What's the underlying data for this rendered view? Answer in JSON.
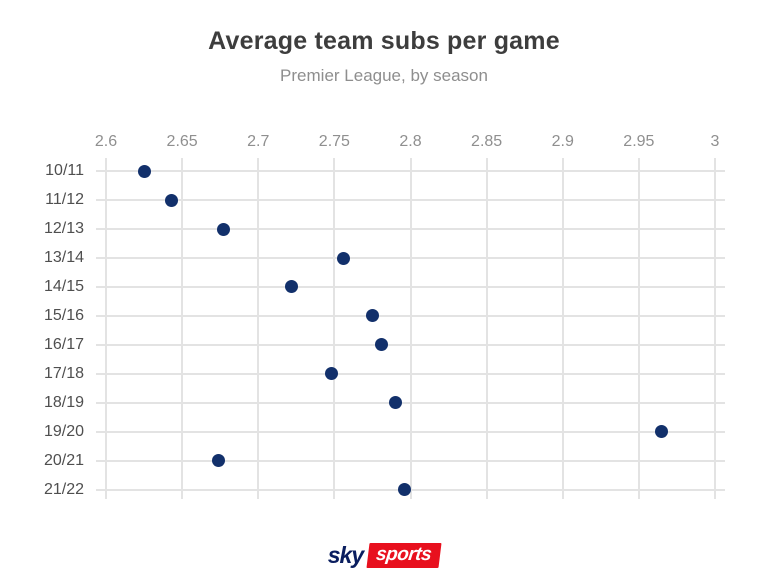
{
  "header": {
    "title": "Average team subs per game",
    "subtitle": "Premier League, by season"
  },
  "chart_data": {
    "type": "scatter",
    "variant": "horizontal-dot-plot",
    "title": "Average team subs per game",
    "subtitle": "Premier League, by season",
    "xlabel": "",
    "ylabel": "",
    "categories": [
      "10/11",
      "11/12",
      "12/13",
      "13/14",
      "14/15",
      "15/16",
      "16/17",
      "17/18",
      "18/19",
      "19/20",
      "20/21",
      "21/22"
    ],
    "values": [
      2.625,
      2.643,
      2.677,
      2.756,
      2.722,
      2.775,
      2.781,
      2.748,
      2.79,
      2.965,
      2.674,
      2.796
    ],
    "x_ticks": [
      2.6,
      2.65,
      2.7,
      2.75,
      2.8,
      2.85,
      2.9,
      2.95,
      3
    ],
    "x_tick_labels": [
      "2.6",
      "2.65",
      "2.7",
      "2.75",
      "2.8",
      "2.85",
      "2.9",
      "2.95",
      "3"
    ],
    "xlim": [
      2.6,
      3.0
    ],
    "grid": true,
    "legend": "none",
    "x_axis_position": "top"
  },
  "colors": {
    "background": "#ffffff",
    "title_text": "#3d3d3d",
    "subtitle_text": "#8e8e8e",
    "dot": "#12306b",
    "gridline": "#e3e3e3",
    "x_tick_label": "#8f8f8f",
    "y_axis_label": "#4f4f4f",
    "logo_navy": "#0a1e5f",
    "logo_red": "#e8101e",
    "logo_text": "#ffffff"
  },
  "footer": {
    "logo": {
      "sky": "sky",
      "sports": "sports"
    }
  }
}
